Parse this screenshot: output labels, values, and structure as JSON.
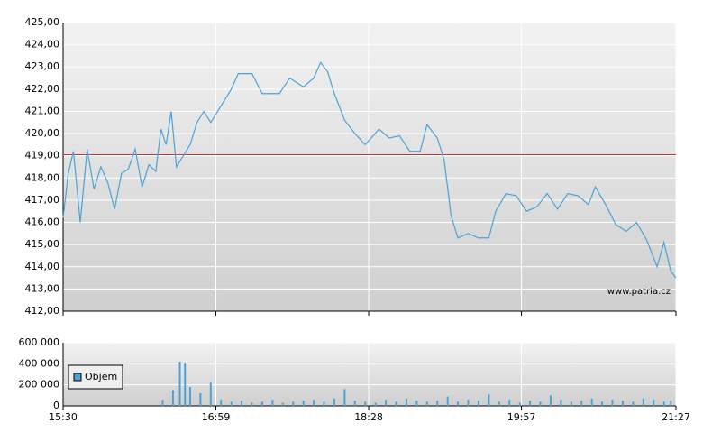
{
  "chart_data": [
    {
      "type": "line",
      "watermark": "www.patria.cz",
      "reference_line": 419.05,
      "reference_color": "#cc3333",
      "xlim": [
        "15:30",
        "21:27"
      ],
      "ylim": [
        412,
        425
      ],
      "yticks": [
        {
          "value": 412,
          "label": "412,00"
        },
        {
          "value": 413,
          "label": "413,00"
        },
        {
          "value": 414,
          "label": "414,00"
        },
        {
          "value": 415,
          "label": "415,00"
        },
        {
          "value": 416,
          "label": "416,00"
        },
        {
          "value": 417,
          "label": "417,00"
        },
        {
          "value": 418,
          "label": "418,00"
        },
        {
          "value": 419,
          "label": "419,00"
        },
        {
          "value": 420,
          "label": "420,00"
        },
        {
          "value": 421,
          "label": "421,00"
        },
        {
          "value": 422,
          "label": "422,00"
        },
        {
          "value": 423,
          "label": "423,00"
        },
        {
          "value": 424,
          "label": "424,00"
        },
        {
          "value": 425,
          "label": "425,00"
        }
      ],
      "grid": true,
      "x": [
        "15:30",
        "15:33",
        "15:36",
        "15:40",
        "15:44",
        "15:48",
        "15:52",
        "15:56",
        "16:00",
        "16:04",
        "16:08",
        "16:12",
        "16:16",
        "16:20",
        "16:24",
        "16:27",
        "16:30",
        "16:33",
        "16:36",
        "16:40",
        "16:44",
        "16:48",
        "16:52",
        "16:56",
        "17:00",
        "17:04",
        "17:08",
        "17:12",
        "17:20",
        "17:26",
        "17:36",
        "17:42",
        "17:50",
        "17:56",
        "18:00",
        "18:04",
        "18:08",
        "18:14",
        "18:20",
        "18:26",
        "18:34",
        "18:40",
        "18:46",
        "18:52",
        "18:58",
        "19:02",
        "19:08",
        "19:12",
        "19:16",
        "19:20",
        "19:26",
        "19:32",
        "19:38",
        "19:42",
        "19:48",
        "19:54",
        "20:00",
        "20:06",
        "20:12",
        "20:18",
        "20:24",
        "20:30",
        "20:36",
        "20:40",
        "20:46",
        "20:52",
        "20:58",
        "21:04",
        "21:10",
        "21:16",
        "21:20",
        "21:24",
        "21:27"
      ],
      "series": [
        {
          "color": "#4aa3d6",
          "values": [
            416.2,
            418.2,
            419.2,
            416.0,
            419.3,
            417.5,
            418.5,
            417.8,
            416.6,
            418.2,
            418.4,
            419.3,
            417.6,
            418.6,
            418.3,
            420.2,
            419.5,
            421.0,
            418.5,
            419.0,
            419.5,
            420.5,
            421.0,
            420.5,
            421.0,
            421.5,
            422.0,
            422.7,
            422.7,
            421.8,
            421.8,
            422.5,
            422.1,
            422.5,
            423.2,
            422.8,
            421.8,
            420.6,
            420.0,
            419.5,
            420.2,
            419.8,
            419.9,
            419.2,
            419.2,
            420.4,
            419.8,
            418.8,
            416.3,
            415.3,
            415.5,
            415.3,
            415.3,
            416.5,
            417.3,
            417.2,
            416.5,
            416.7,
            417.3,
            416.6,
            417.3,
            417.2,
            416.8,
            417.6,
            416.8,
            415.9,
            415.6,
            416.0,
            415.2,
            414.0,
            415.1,
            413.8,
            413.5
          ]
        }
      ]
    },
    {
      "type": "bar",
      "xlim": [
        "15:30",
        "21:27"
      ],
      "ylim": [
        0,
        600000
      ],
      "yticks": [
        0,
        {
          "value": 200000,
          "label": "200 000"
        },
        {
          "value": 400000,
          "label": "400 000"
        },
        {
          "value": 600000,
          "label": "600 000"
        }
      ],
      "xticks": [
        "15:30",
        "16:59",
        "18:28",
        "19:57",
        "21:27"
      ],
      "grid": true,
      "legend": "top-left",
      "x": [
        "16:28",
        "16:34",
        "16:38",
        "16:41",
        "16:44",
        "16:50",
        "16:56",
        "17:02",
        "17:08",
        "17:14",
        "17:20",
        "17:26",
        "17:32",
        "17:38",
        "17:44",
        "17:50",
        "17:56",
        "18:02",
        "18:08",
        "18:14",
        "18:20",
        "18:26",
        "18:32",
        "18:38",
        "18:44",
        "18:50",
        "18:56",
        "19:02",
        "19:08",
        "19:14",
        "19:20",
        "19:26",
        "19:32",
        "19:38",
        "19:44",
        "19:50",
        "19:56",
        "20:02",
        "20:08",
        "20:14",
        "20:20",
        "20:26",
        "20:32",
        "20:38",
        "20:44",
        "20:50",
        "20:56",
        "21:02",
        "21:08",
        "21:14",
        "21:20",
        "21:24"
      ],
      "series": [
        {
          "name": "Objem",
          "color": "#4aa3d6",
          "values": [
            60000,
            150000,
            420000,
            410000,
            180000,
            120000,
            220000,
            60000,
            40000,
            50000,
            30000,
            40000,
            60000,
            30000,
            40000,
            50000,
            60000,
            40000,
            70000,
            160000,
            50000,
            40000,
            30000,
            60000,
            40000,
            70000,
            50000,
            40000,
            50000,
            90000,
            40000,
            60000,
            50000,
            110000,
            40000,
            60000,
            30000,
            50000,
            40000,
            100000,
            60000,
            40000,
            50000,
            70000,
            40000,
            60000,
            50000,
            40000,
            70000,
            60000,
            40000,
            50000
          ]
        }
      ]
    }
  ]
}
